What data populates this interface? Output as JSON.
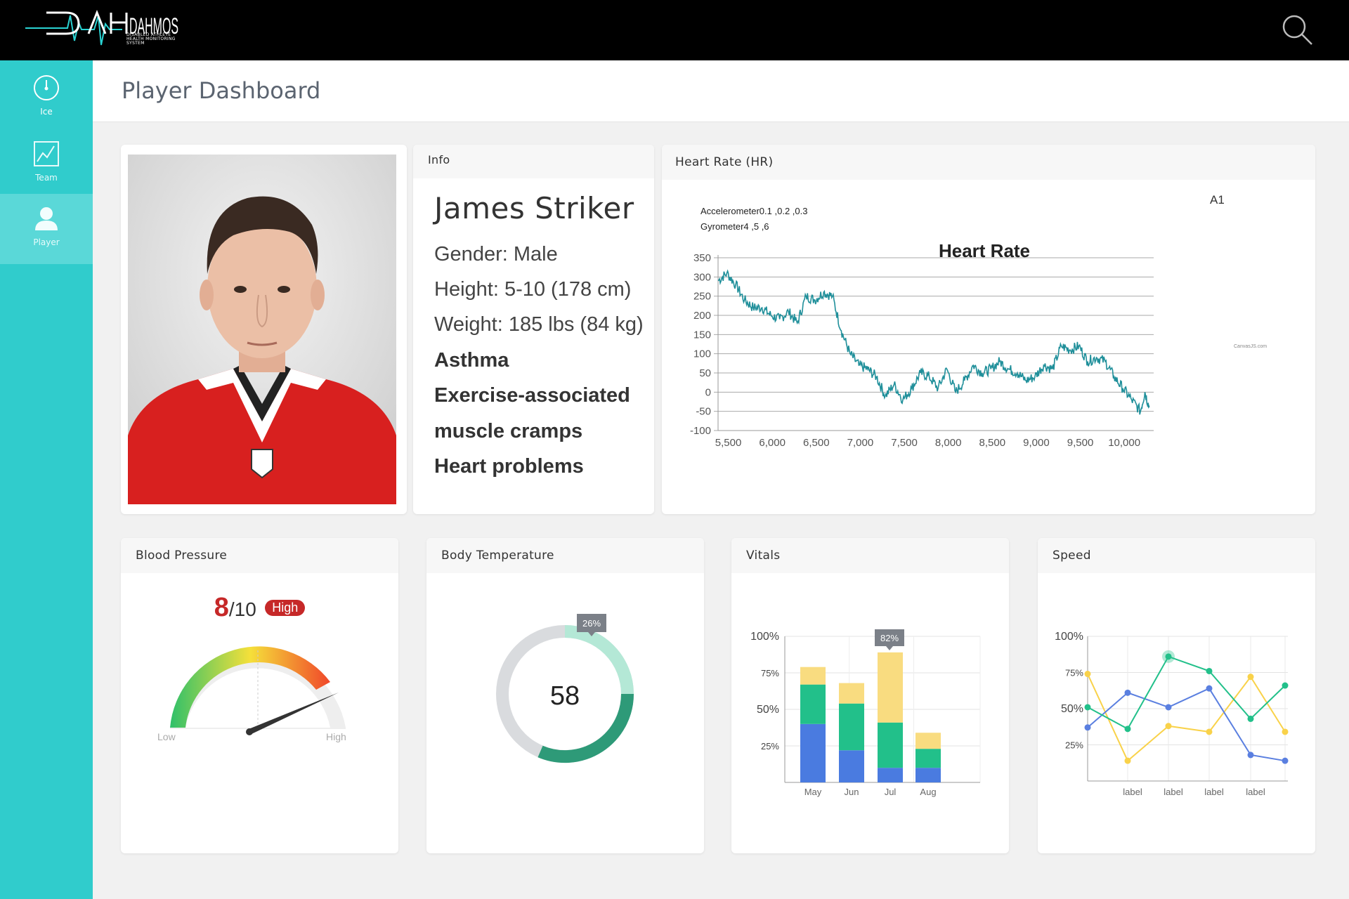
{
  "brand": {
    "logo_text": "DAHMOS",
    "logo_subtitle": "DISABLED ATHLETE HEALTH MONITORING SYSTEM"
  },
  "sidebar": {
    "items": [
      {
        "label": "Ice",
        "icon": "gauge-icon"
      },
      {
        "label": "Team",
        "icon": "chart-icon"
      },
      {
        "label": "Player",
        "icon": "user-icon",
        "active": true
      }
    ]
  },
  "header": {
    "title": "Player Dashboard"
  },
  "info": {
    "title": "Info",
    "name": "James Striker",
    "gender": "Gender: Male",
    "height": "Height: 5-10 (178 cm)",
    "weight": "Weight: 185 lbs (84 kg)",
    "conditions": [
      "Asthma",
      "Exercise-associated",
      "muscle cramps",
      "Heart problems"
    ]
  },
  "heart_rate": {
    "title": "Heart Rate (HR)",
    "sensor_id": "A1",
    "accelerometer": "Accelerometer0.1 ,0.2 ,0.3",
    "gyrometer": "Gyrometer4 ,5 ,6",
    "credit": "CanvasJS.com"
  },
  "blood_pressure": {
    "title": "Blood Pressure",
    "score": "8",
    "score_den": "/10",
    "level": "High",
    "gauge_low": "Low",
    "gauge_high": "High",
    "gauge_fraction": 0.8
  },
  "body_temperature": {
    "title": "Body Temperature",
    "value": "58",
    "tooltip": "26%"
  },
  "vitals": {
    "title": "Vitals",
    "tooltip": "82%"
  },
  "speed": {
    "title": "Speed"
  },
  "colors": {
    "teal": "#30cccc",
    "line": "#1f8f9a",
    "blue": "#4a7be0",
    "green": "#22c08a",
    "yellow": "#f9dc80",
    "red": "#c62828"
  },
  "chart_data": [
    {
      "type": "line",
      "title": "Heart Rate",
      "xlabel": "",
      "ylabel": "",
      "xlim": [
        5400,
        10350
      ],
      "ylim": [
        -100,
        350
      ],
      "xticks": [
        5500,
        6000,
        6500,
        7000,
        7500,
        8000,
        8500,
        9000,
        9500,
        10000
      ],
      "yticks": [
        -100,
        -50,
        0,
        50,
        100,
        150,
        200,
        250,
        300,
        350
      ],
      "grid": true,
      "series": [
        {
          "x": [
            5400,
            5500,
            5600,
            5700,
            5800,
            5900,
            6000,
            6100,
            6200,
            6300,
            6400,
            6500,
            6600,
            6700,
            6800,
            6900,
            7000,
            7100,
            7200,
            7300,
            7400,
            7500,
            7600,
            7700,
            7800,
            7900,
            8000,
            8100,
            8200,
            8300,
            8400,
            8500,
            8600,
            8700,
            8800,
            8900,
            9000,
            9100,
            9200,
            9300,
            9400,
            9500,
            9600,
            9700,
            9800,
            9900,
            10000,
            10100,
            10200,
            10250,
            10300
          ],
          "y": [
            290,
            310,
            280,
            240,
            220,
            220,
            200,
            190,
            210,
            180,
            250,
            240,
            260,
            250,
            160,
            100,
            70,
            60,
            40,
            -10,
            20,
            -20,
            10,
            50,
            40,
            10,
            60,
            0,
            30,
            70,
            50,
            60,
            80,
            60,
            50,
            30,
            40,
            70,
            60,
            120,
            110,
            120,
            80,
            90,
            80,
            40,
            10,
            -20,
            -50,
            0,
            -40
          ]
        }
      ]
    },
    {
      "type": "gauge",
      "title": "Blood Pressure",
      "value": 0.8,
      "labels": [
        "Low",
        "High"
      ]
    },
    {
      "type": "pie",
      "title": "Body Temperature",
      "center_label": "58",
      "slices": [
        {
          "name": "light",
          "value": 26,
          "color": "#b4e8d6"
        },
        {
          "name": "dark",
          "value": 32,
          "color": "#2e9a78"
        },
        {
          "name": "rest",
          "value": 42,
          "color": "#d9dbde"
        }
      ]
    },
    {
      "type": "bar",
      "title": "Vitals",
      "stacked": true,
      "categories": [
        "May",
        "Jun",
        "Jul",
        "Aug"
      ],
      "yticks": [
        "100%",
        "75%",
        "50%",
        "25%"
      ],
      "ylim": [
        0,
        100
      ],
      "series": [
        {
          "values": [
            40,
            22,
            10,
            10
          ],
          "color": "#4a7be0"
        },
        {
          "values": [
            27,
            32,
            31,
            13
          ],
          "color": "#22c08a"
        },
        {
          "values": [
            12,
            14,
            48,
            11
          ],
          "color": "#f9dc80"
        }
      ],
      "tooltip": "82%"
    },
    {
      "type": "line",
      "title": "Speed",
      "categories": [
        "",
        "label",
        "label",
        "label",
        "label",
        ""
      ],
      "yticks": [
        "100%",
        "75%",
        "50%",
        "25%"
      ],
      "ylim": [
        0,
        100
      ],
      "series": [
        {
          "color": "#f9d24a",
          "values": [
            74,
            14,
            38,
            34,
            72,
            34
          ]
        },
        {
          "color": "#5a7fe0",
          "values": [
            37,
            61,
            51,
            64,
            18,
            14
          ]
        },
        {
          "color": "#22c08a",
          "values": [
            51,
            36,
            86,
            76,
            43,
            66
          ]
        }
      ]
    }
  ]
}
